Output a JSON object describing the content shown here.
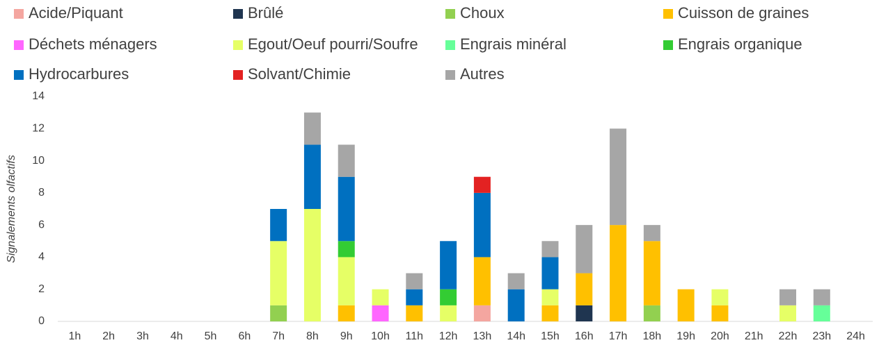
{
  "chart_data": {
    "type": "stacked_bar",
    "ylabel": "Signalements olfactifs",
    "categories": [
      "1h",
      "2h",
      "3h",
      "4h",
      "5h",
      "6h",
      "7h",
      "8h",
      "9h",
      "10h",
      "11h",
      "12h",
      "13h",
      "14h",
      "15h",
      "16h",
      "17h",
      "18h",
      "19h",
      "20h",
      "21h",
      "22h",
      "23h",
      "24h"
    ],
    "series": [
      {
        "name": "Acide/Piquant",
        "color": "#f4a6a0",
        "values": [
          0,
          0,
          0,
          0,
          0,
          0,
          0,
          0,
          0,
          0,
          0,
          0,
          1,
          0,
          0,
          0,
          0,
          0,
          0,
          0,
          0,
          0,
          0,
          0
        ]
      },
      {
        "name": "Brûlé",
        "color": "#1f3550",
        "values": [
          0,
          0,
          0,
          0,
          0,
          0,
          0,
          0,
          0,
          0,
          0,
          0,
          0,
          0,
          0,
          1,
          0,
          0,
          0,
          0,
          0,
          0,
          0,
          0
        ]
      },
      {
        "name": "Choux",
        "color": "#92d050",
        "values": [
          0,
          0,
          0,
          0,
          0,
          0,
          1,
          0,
          0,
          0,
          0,
          0,
          0,
          0,
          0,
          0,
          0,
          1,
          0,
          0,
          0,
          0,
          0,
          0
        ]
      },
      {
        "name": "Cuisson de graines",
        "color": "#ffc000",
        "values": [
          0,
          0,
          0,
          0,
          0,
          0,
          0,
          0,
          1,
          0,
          1,
          0,
          3,
          0,
          1,
          2,
          6,
          4,
          2,
          1,
          0,
          0,
          0,
          0
        ]
      },
      {
        "name": "Déchets ménagers",
        "color": "#ff66ff",
        "values": [
          0,
          0,
          0,
          0,
          0,
          0,
          0,
          0,
          0,
          1,
          0,
          0,
          0,
          0,
          0,
          0,
          0,
          0,
          0,
          0,
          0,
          0,
          0,
          0
        ]
      },
      {
        "name": "Egout/Oeuf pourri/Soufre",
        "color": "#e6ff66",
        "values": [
          0,
          0,
          0,
          0,
          0,
          0,
          4,
          7,
          3,
          1,
          0,
          1,
          0,
          0,
          1,
          0,
          0,
          0,
          0,
          1,
          0,
          1,
          0,
          0
        ]
      },
      {
        "name": "Engrais minéral",
        "color": "#66ff99",
        "values": [
          0,
          0,
          0,
          0,
          0,
          0,
          0,
          0,
          0,
          0,
          0,
          0,
          0,
          0,
          0,
          0,
          0,
          0,
          0,
          0,
          0,
          0,
          1,
          0
        ]
      },
      {
        "name": "Engrais organique",
        "color": "#33cc33",
        "values": [
          0,
          0,
          0,
          0,
          0,
          0,
          0,
          0,
          1,
          0,
          0,
          1,
          0,
          0,
          0,
          0,
          0,
          0,
          0,
          0,
          0,
          0,
          0,
          0
        ]
      },
      {
        "name": "Hydrocarbures",
        "color": "#0070c0",
        "values": [
          0,
          0,
          0,
          0,
          0,
          0,
          2,
          4,
          4,
          0,
          1,
          3,
          4,
          2,
          2,
          0,
          0,
          0,
          0,
          0,
          0,
          0,
          0,
          0
        ]
      },
      {
        "name": "Solvant/Chimie",
        "color": "#e32222",
        "values": [
          0,
          0,
          0,
          0,
          0,
          0,
          0,
          0,
          0,
          0,
          0,
          0,
          1,
          0,
          0,
          0,
          0,
          0,
          0,
          0,
          0,
          0,
          0,
          0
        ]
      },
      {
        "name": "Autres",
        "color": "#a6a6a6",
        "values": [
          0,
          0,
          0,
          0,
          0,
          0,
          0,
          2,
          2,
          0,
          1,
          0,
          0,
          1,
          1,
          3,
          6,
          1,
          0,
          0,
          0,
          1,
          1,
          0
        ]
      }
    ],
    "ylim": [
      0,
      14
    ],
    "yticks": [
      0,
      2,
      4,
      6,
      8,
      10,
      12,
      14
    ],
    "grid": false
  }
}
